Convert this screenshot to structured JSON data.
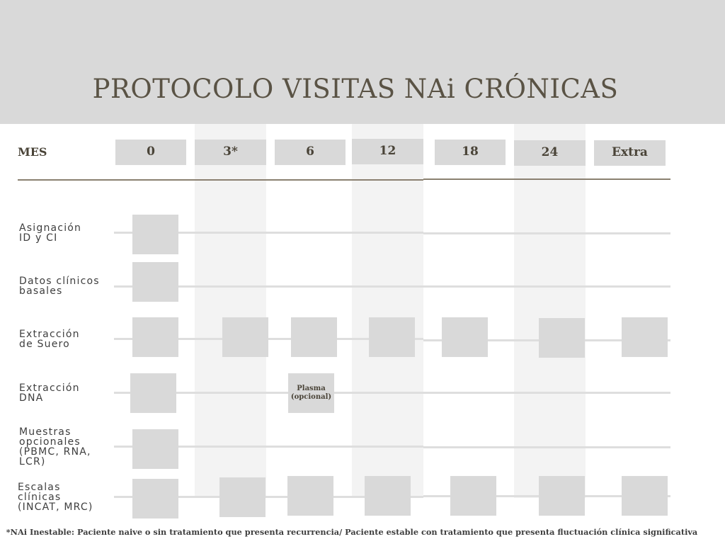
{
  "title": "PROTOCOLO VISITAS NAi CRÓNICAS",
  "month_header": "MES",
  "months": [
    "0",
    "3*",
    "6",
    "12",
    "18",
    "24",
    "Extra"
  ],
  "rows": [
    {
      "line1": "Asignación",
      "line2": "ID y CI"
    },
    {
      "line1": "Datos clínicos",
      "line2": "basales"
    },
    {
      "line1": "Extracción",
      "line2": "de Suero"
    },
    {
      "line1": "Extracción",
      "line2": "DNA"
    },
    {
      "line1": "Muestras",
      "line2": "opcionales",
      "line3": "(PBMC, RNA,",
      "line4": "LCR)"
    },
    {
      "line1": "Escalas",
      "line2": "clínicas",
      "line3": "(INCAT, MRC)"
    }
  ],
  "plasma_note": {
    "line1": "Plasma",
    "line2": "(opcional)"
  },
  "footnote": "*NAi Inestable:  Paciente naive o sin tratamiento que presenta recurrencia/ Paciente estable con tratamiento que presenta fluctuación clínica significativa"
}
